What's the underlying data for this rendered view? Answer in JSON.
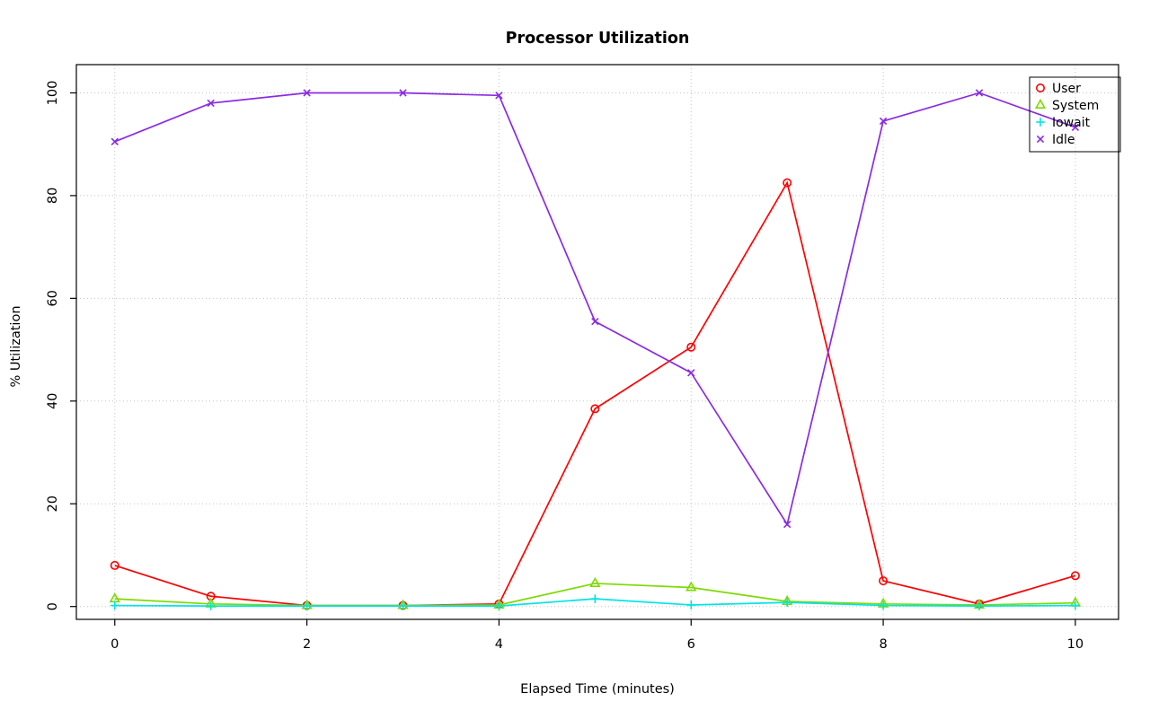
{
  "title": "Processor Utilization",
  "chart_data": {
    "type": "line",
    "title": "Processor Utilization",
    "xlabel": "Elapsed Time (minutes)",
    "ylabel": "% Utilization",
    "x": [
      0,
      1,
      2,
      3,
      4,
      5,
      6,
      7,
      8,
      9,
      10
    ],
    "xlim": [
      -0.4,
      10.45
    ],
    "ylim": [
      -2.5,
      105.5
    ],
    "xticks": [
      0,
      2,
      4,
      6,
      8,
      10
    ],
    "yticks": [
      0,
      20,
      40,
      60,
      80,
      100
    ],
    "grid": true,
    "grid_style": "dotted",
    "legend_position": "top-right",
    "background": "#ffffff",
    "grid_color": "#c4c4c4",
    "axis_color": "#000000",
    "series": [
      {
        "name": "User",
        "color": "#ff0000",
        "marker": "circle",
        "values": [
          8,
          2,
          0.2,
          0.2,
          0.5,
          38.5,
          50.5,
          82.5,
          5,
          0.5,
          6
        ]
      },
      {
        "name": "System",
        "color": "#7cdb00",
        "marker": "triangle",
        "values": [
          1.5,
          0.5,
          0.2,
          0.2,
          0.3,
          4.5,
          3.7,
          1,
          0.5,
          0.3,
          0.7
        ]
      },
      {
        "name": "Iowait",
        "color": "#00e5e5",
        "marker": "plus",
        "values": [
          0.2,
          0.1,
          0.1,
          0.1,
          0.1,
          1.5,
          0.3,
          0.8,
          0.2,
          0.1,
          0.2
        ]
      },
      {
        "name": "Idle",
        "color": "#8a2be2",
        "marker": "x",
        "values": [
          90.5,
          98,
          100,
          100,
          99.5,
          55.5,
          45.5,
          16,
          94.5,
          100,
          93.3
        ]
      }
    ]
  }
}
